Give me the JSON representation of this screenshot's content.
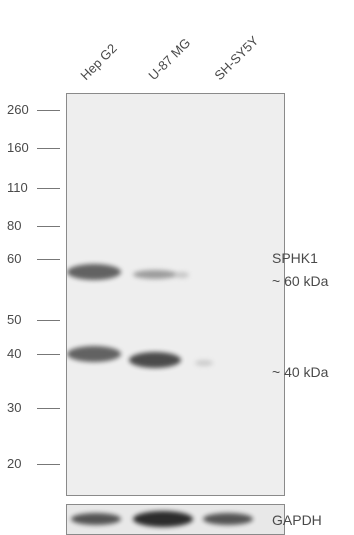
{
  "lanes": [
    {
      "label": "Hep G2"
    },
    {
      "label": "U-87 MG"
    },
    {
      "label": "SH-SY5Y"
    }
  ],
  "markers": [
    {
      "label": "260"
    },
    {
      "label": "160"
    },
    {
      "label": "110"
    },
    {
      "label": "80"
    },
    {
      "label": "60"
    },
    {
      "label": "50"
    },
    {
      "label": "40"
    },
    {
      "label": "30"
    },
    {
      "label": "20"
    }
  ],
  "annotations": {
    "target": "SPHK1",
    "band_upper": "~ 60 kDa",
    "band_lower": "~ 40 kDa",
    "loading_control": "GAPDH"
  },
  "colors": {
    "membrane": "#eeeeee",
    "band_dark": "#2a2a2a",
    "text": "#4a4a4a"
  }
}
